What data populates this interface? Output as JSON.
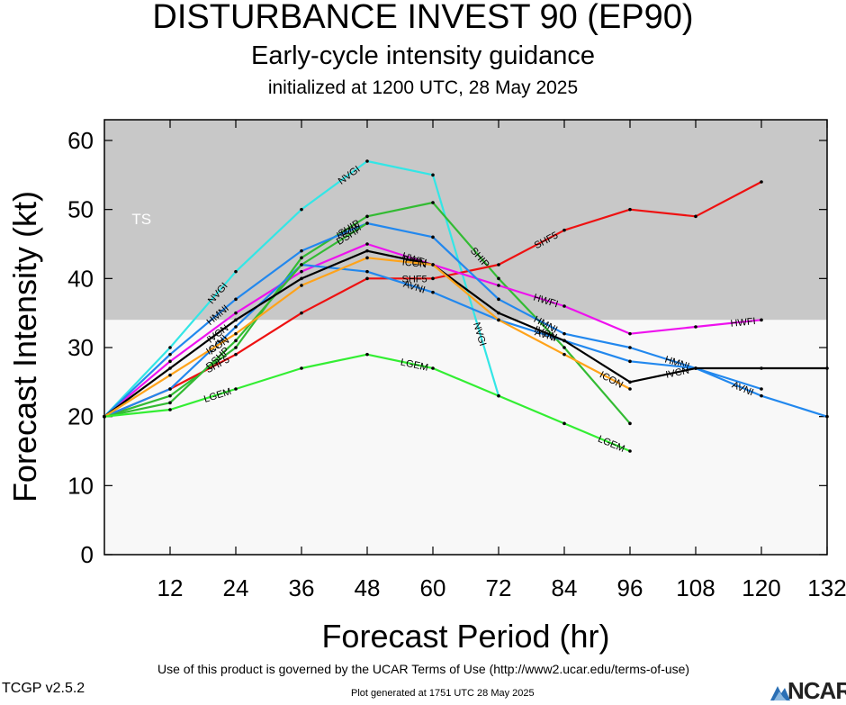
{
  "header": {
    "title": "DISTURBANCE INVEST 90 (EP90)",
    "subtitle": "Early-cycle intensity guidance",
    "initialized": "initialized at 1200 UTC, 28 May 2025"
  },
  "footer": {
    "terms": "Use of this product is governed by the UCAR Terms of Use (http://www2.ucar.edu/terms-of-use)",
    "version": "TCGP v2.5.2",
    "generated": "Plot generated at 1751 UTC   28 May 2025",
    "logo_text": "NCAR"
  },
  "chart_data": {
    "type": "line",
    "xlabel": "Forecast Period (hr)",
    "ylabel": "Forecast Intensity (kt)",
    "xlim": [
      0,
      132
    ],
    "ylim": [
      0,
      63
    ],
    "xticks": [
      12,
      24,
      36,
      48,
      60,
      72,
      84,
      96,
      108,
      120,
      132
    ],
    "yticks": [
      0,
      10,
      20,
      30,
      40,
      50,
      60
    ],
    "bands": [
      {
        "label": "TS",
        "y_from": 34,
        "y_to": 63,
        "color": "#c8c8c8"
      },
      {
        "label": "",
        "y_from": 0,
        "y_to": 34,
        "color": "#f8f8f8"
      }
    ],
    "series": [
      {
        "name": "NVGI",
        "color": "#33e6e6",
        "points": [
          [
            0,
            20
          ],
          [
            12,
            30
          ],
          [
            24,
            41
          ],
          [
            36,
            50
          ],
          [
            48,
            57
          ],
          [
            60,
            55
          ],
          [
            72,
            23
          ]
        ],
        "labels": [
          {
            "at": 2,
            "from": 1
          },
          {
            "at": 4,
            "from": 3
          },
          {
            "at": 6,
            "from": 5
          }
        ]
      },
      {
        "name": "SHIP",
        "color": "#33bb33",
        "points": [
          [
            0,
            20
          ],
          [
            12,
            23
          ],
          [
            24,
            30
          ],
          [
            36,
            43
          ],
          [
            48,
            49
          ],
          [
            60,
            51
          ],
          [
            72,
            40
          ],
          [
            84,
            30
          ],
          [
            96,
            19
          ]
        ],
        "labels": [
          {
            "at": 4,
            "from": 3
          },
          {
            "at": 6,
            "from": 5
          }
        ]
      },
      {
        "name": "SHF5",
        "color": "#ee1111",
        "points": [
          [
            0,
            20
          ],
          [
            12,
            24
          ],
          [
            24,
            29
          ],
          [
            36,
            35
          ],
          [
            48,
            40
          ],
          [
            60,
            40
          ],
          [
            72,
            42
          ],
          [
            84,
            47
          ],
          [
            96,
            50
          ],
          [
            108,
            49
          ],
          [
            120,
            54
          ]
        ],
        "labels": [
          {
            "at": 2,
            "from": 1
          },
          {
            "at": 5,
            "from": 4
          },
          {
            "at": 7,
            "from": 6
          }
        ]
      },
      {
        "name": "HWFI",
        "color": "#ee11ee",
        "points": [
          [
            0,
            20
          ],
          [
            12,
            28
          ],
          [
            24,
            35
          ],
          [
            36,
            41
          ],
          [
            48,
            45
          ],
          [
            60,
            42
          ],
          [
            72,
            39
          ],
          [
            84,
            36
          ],
          [
            96,
            32
          ],
          [
            108,
            33
          ],
          [
            120,
            34
          ]
        ],
        "labels": [
          {
            "at": 5,
            "from": 4
          },
          {
            "at": 7,
            "from": 6
          },
          {
            "at": 10,
            "from": 9
          }
        ]
      },
      {
        "name": "HMNI",
        "color": "#2288ee",
        "points": [
          [
            0,
            20
          ],
          [
            12,
            29
          ],
          [
            24,
            37
          ],
          [
            36,
            44
          ],
          [
            48,
            48
          ],
          [
            60,
            46
          ],
          [
            72,
            37
          ],
          [
            84,
            32
          ],
          [
            96,
            30
          ],
          [
            108,
            27
          ],
          [
            120,
            24
          ]
        ],
        "labels": [
          {
            "at": 2,
            "from": 1
          },
          {
            "at": 4,
            "from": 3
          },
          {
            "at": 7,
            "from": 6
          },
          {
            "at": 9,
            "from": 8
          }
        ]
      },
      {
        "name": "AVNI",
        "color": "#2288ee",
        "points": [
          [
            0,
            20
          ],
          [
            12,
            24
          ],
          [
            24,
            33
          ],
          [
            36,
            42
          ],
          [
            48,
            41
          ],
          [
            60,
            38
          ],
          [
            72,
            34
          ],
          [
            84,
            31
          ],
          [
            96,
            28
          ],
          [
            108,
            27
          ],
          [
            120,
            23
          ],
          [
            132,
            20
          ]
        ],
        "labels": [
          {
            "at": 2,
            "from": 1
          },
          {
            "at": 5,
            "from": 4
          },
          {
            "at": 7,
            "from": 6
          },
          {
            "at": 10,
            "from": 9
          }
        ]
      },
      {
        "name": "DSHP",
        "color": "#33bb33",
        "points": [
          [
            0,
            20
          ],
          [
            12,
            22
          ],
          [
            24,
            31
          ],
          [
            36,
            42
          ],
          [
            48,
            48
          ]
        ],
        "labels": [
          {
            "at": 2,
            "from": 1
          },
          {
            "at": 4,
            "from": 3
          }
        ]
      },
      {
        "name": "IVCN",
        "color": "#000000",
        "points": [
          [
            0,
            20
          ],
          [
            12,
            27
          ],
          [
            24,
            34
          ],
          [
            36,
            40
          ],
          [
            48,
            44
          ],
          [
            60,
            42
          ],
          [
            72,
            35
          ],
          [
            84,
            31
          ],
          [
            96,
            25
          ],
          [
            108,
            27
          ],
          [
            120,
            27
          ],
          [
            132,
            27
          ]
        ],
        "labels": [
          {
            "at": 2,
            "from": 1
          },
          {
            "at": 5,
            "from": 4
          },
          {
            "at": 7,
            "from": 6
          },
          {
            "at": 9,
            "from": 8
          }
        ]
      },
      {
        "name": "ICON",
        "color": "#ffa31a",
        "points": [
          [
            0,
            20
          ],
          [
            12,
            26
          ],
          [
            24,
            32
          ],
          [
            36,
            39
          ],
          [
            48,
            43
          ],
          [
            60,
            42
          ],
          [
            72,
            34
          ],
          [
            84,
            29
          ],
          [
            96,
            24
          ]
        ],
        "labels": [
          {
            "at": 2,
            "from": 1
          },
          {
            "at": 5,
            "from": 4
          },
          {
            "at": 8,
            "from": 7
          }
        ]
      },
      {
        "name": "LGEM",
        "color": "#33ee33",
        "points": [
          [
            0,
            20
          ],
          [
            12,
            21
          ],
          [
            24,
            24
          ],
          [
            36,
            27
          ],
          [
            48,
            29
          ],
          [
            60,
            27
          ],
          [
            72,
            23
          ],
          [
            84,
            19
          ],
          [
            96,
            15
          ]
        ],
        "labels": [
          {
            "at": 2,
            "from": 1
          },
          {
            "at": 5,
            "from": 4
          },
          {
            "at": 8,
            "from": 7
          }
        ]
      }
    ]
  }
}
